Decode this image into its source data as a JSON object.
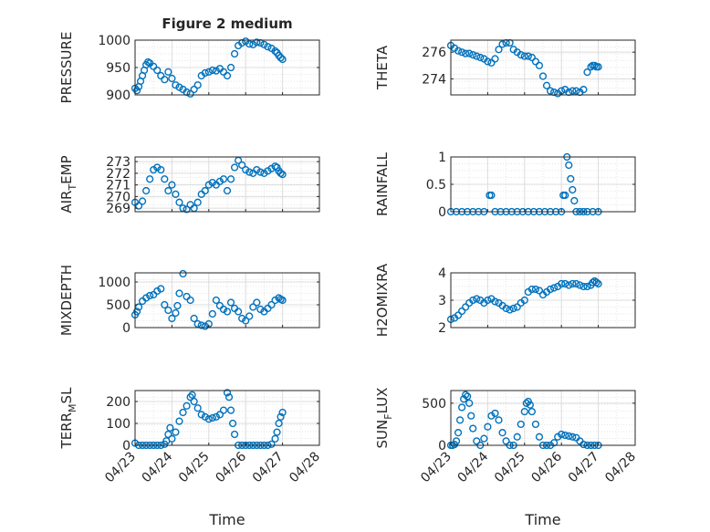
{
  "figure": {
    "title": "Figure 2 medium",
    "marker_color": "#0072BD"
  },
  "chart_data": [
    {
      "id": "pressure",
      "type": "scatter",
      "title": "Figure 2 medium",
      "ylabel": "PRESSURE",
      "xlabel": "",
      "xlim": [
        0,
        5
      ],
      "ylim": [
        900,
        1000
      ],
      "yticks": [
        900,
        950,
        1000
      ],
      "grid": true,
      "series": [
        {
          "x": [
            0,
            0.05,
            0.1,
            0.15,
            0.2,
            0.25,
            0.3,
            0.35,
            0.4,
            0.5,
            0.6,
            0.7,
            0.8,
            0.9,
            1,
            1.1,
            1.2,
            1.3,
            1.4,
            1.5,
            1.6,
            1.7,
            1.8,
            1.9,
            2,
            2.1,
            2.2,
            2.3,
            2.4,
            2.5,
            2.6,
            2.7,
            2.8,
            2.9,
            3,
            3.1,
            3.2,
            3.3,
            3.4,
            3.5,
            3.6,
            3.7,
            3.8,
            3.85,
            3.9,
            3.95,
            4
          ],
          "y": [
            912,
            908,
            915,
            925,
            935,
            945,
            955,
            960,
            958,
            952,
            945,
            935,
            928,
            942,
            930,
            918,
            914,
            910,
            905,
            902,
            910,
            918,
            935,
            940,
            942,
            945,
            944,
            948,
            942,
            935,
            950,
            975,
            990,
            995,
            998,
            993,
            992,
            996,
            995,
            992,
            988,
            985,
            980,
            977,
            972,
            968,
            965
          ]
        }
      ]
    },
    {
      "id": "theta",
      "type": "scatter",
      "ylabel": "THETA",
      "xlabel": "",
      "xlim": [
        0,
        5
      ],
      "ylim": [
        272.8,
        276.9
      ],
      "yticks": [
        274,
        276
      ],
      "grid": true,
      "series": [
        {
          "x": [
            0,
            0.1,
            0.2,
            0.3,
            0.4,
            0.5,
            0.6,
            0.7,
            0.8,
            0.9,
            1,
            1.1,
            1.2,
            1.3,
            1.4,
            1.5,
            1.6,
            1.7,
            1.8,
            1.9,
            2,
            2.1,
            2.2,
            2.3,
            2.4,
            2.5,
            2.6,
            2.7,
            2.8,
            2.9,
            3,
            3.1,
            3.2,
            3.3,
            3.4,
            3.5,
            3.6,
            3.7,
            3.8,
            3.85,
            3.9,
            3.95,
            4
          ],
          "y": [
            276.5,
            276.3,
            276.1,
            276,
            275.9,
            275.9,
            275.8,
            275.7,
            275.6,
            275.5,
            275.3,
            275.2,
            275.5,
            276.2,
            276.6,
            276.7,
            276.7,
            276.2,
            276.0,
            275.8,
            275.7,
            275.7,
            275.6,
            275.3,
            275.0,
            274.2,
            273.5,
            273.1,
            273.0,
            272.9,
            273.1,
            273.2,
            273.0,
            273.1,
            273.1,
            273.0,
            273.2,
            274.5,
            274.9,
            275.0,
            275.0,
            274.9,
            274.9
          ]
        }
      ]
    },
    {
      "id": "air_temp",
      "type": "scatter",
      "ylabel": "AIR_TEMP",
      "xlabel": "",
      "xlim": [
        0,
        5
      ],
      "ylim": [
        268.7,
        273.4
      ],
      "yticks": [
        269,
        270,
        271,
        272,
        273
      ],
      "grid": true,
      "series": [
        {
          "x": [
            0,
            0.1,
            0.2,
            0.3,
            0.4,
            0.5,
            0.6,
            0.7,
            0.8,
            0.9,
            1,
            1.1,
            1.2,
            1.3,
            1.4,
            1.5,
            1.6,
            1.7,
            1.8,
            1.9,
            2,
            2.1,
            2.2,
            2.3,
            2.4,
            2.5,
            2.6,
            2.7,
            2.8,
            2.9,
            3,
            3.1,
            3.2,
            3.3,
            3.4,
            3.5,
            3.6,
            3.7,
            3.8,
            3.85,
            3.9,
            3.95,
            4
          ],
          "y": [
            269.5,
            269.2,
            269.6,
            270.5,
            271.5,
            272.3,
            272.5,
            272.3,
            271.5,
            270.5,
            271.0,
            270.2,
            269.5,
            269.0,
            268.9,
            269.3,
            269.0,
            269.5,
            270.2,
            270.5,
            271.0,
            271.2,
            271.0,
            271.3,
            271.5,
            270.5,
            271.5,
            272.5,
            273.1,
            272.7,
            272.3,
            272.1,
            272.0,
            272.3,
            272.1,
            272.0,
            272.2,
            272.4,
            272.6,
            272.5,
            272.2,
            272.0,
            271.9
          ]
        }
      ]
    },
    {
      "id": "rainfall",
      "type": "scatter",
      "ylabel": "RAINFALL",
      "xlabel": "",
      "xlim": [
        0,
        5
      ],
      "ylim": [
        0,
        1
      ],
      "yticks": [
        0,
        0.5,
        1
      ],
      "yticklabels": [
        "0",
        "0.5",
        "1"
      ],
      "grid": true,
      "series": [
        {
          "x": [
            0,
            0.15,
            0.3,
            0.45,
            0.6,
            0.75,
            0.9,
            1.05,
            1.1,
            1.2,
            1.35,
            1.5,
            1.65,
            1.8,
            1.95,
            2.1,
            2.25,
            2.4,
            2.55,
            2.7,
            2.85,
            3.0,
            3.05,
            3.1,
            3.15,
            3.2,
            3.25,
            3.3,
            3.35,
            3.4,
            3.5,
            3.6,
            3.7,
            3.85,
            4
          ],
          "y": [
            0,
            0,
            0,
            0,
            0,
            0,
            0,
            0.3,
            0.3,
            0,
            0,
            0,
            0,
            0,
            0,
            0,
            0,
            0,
            0,
            0,
            0,
            0,
            0.3,
            0.3,
            1.0,
            0.85,
            0.6,
            0.4,
            0.2,
            0,
            0,
            0,
            0,
            0,
            0
          ]
        }
      ]
    },
    {
      "id": "mixdepth",
      "type": "scatter",
      "ylabel": "MIXDEPTH",
      "xlabel": "",
      "xlim": [
        0,
        5
      ],
      "ylim": [
        0,
        1200
      ],
      "yticks": [
        0,
        500,
        1000
      ],
      "grid": true,
      "series": [
        {
          "x": [
            0,
            0.05,
            0.1,
            0.2,
            0.3,
            0.4,
            0.5,
            0.6,
            0.7,
            0.8,
            0.9,
            1,
            1.1,
            1.15,
            1.2,
            1.3,
            1.4,
            1.5,
            1.6,
            1.7,
            1.8,
            1.9,
            2,
            2.1,
            2.2,
            2.3,
            2.4,
            2.5,
            2.6,
            2.7,
            2.8,
            2.9,
            3,
            3.1,
            3.2,
            3.3,
            3.4,
            3.5,
            3.6,
            3.7,
            3.8,
            3.9,
            3.95,
            4
          ],
          "y": [
            280,
            350,
            450,
            580,
            650,
            700,
            720,
            800,
            850,
            500,
            380,
            200,
            320,
            480,
            750,
            1180,
            680,
            600,
            200,
            80,
            50,
            30,
            80,
            300,
            600,
            480,
            400,
            350,
            550,
            420,
            350,
            200,
            150,
            250,
            450,
            550,
            400,
            350,
            420,
            500,
            600,
            650,
            620,
            600
          ]
        }
      ]
    },
    {
      "id": "h2omixra",
      "type": "scatter",
      "ylabel": "H2OMIXRA",
      "xlabel": "",
      "xlim": [
        0,
        5
      ],
      "ylim": [
        2,
        4
      ],
      "yticks": [
        2,
        3,
        4
      ],
      "grid": true,
      "series": [
        {
          "x": [
            0,
            0.1,
            0.2,
            0.3,
            0.4,
            0.5,
            0.6,
            0.7,
            0.8,
            0.9,
            1,
            1.1,
            1.2,
            1.3,
            1.4,
            1.5,
            1.6,
            1.7,
            1.8,
            1.9,
            2,
            2.1,
            2.2,
            2.3,
            2.4,
            2.5,
            2.6,
            2.7,
            2.8,
            2.9,
            3,
            3.1,
            3.2,
            3.3,
            3.4,
            3.5,
            3.6,
            3.7,
            3.8,
            3.85,
            3.9,
            3.95,
            4
          ],
          "y": [
            2.3,
            2.35,
            2.45,
            2.6,
            2.75,
            2.9,
            3.0,
            3.05,
            3.0,
            2.9,
            3.0,
            3.05,
            2.95,
            2.9,
            2.8,
            2.7,
            2.65,
            2.7,
            2.75,
            2.9,
            3.0,
            3.3,
            3.4,
            3.4,
            3.35,
            3.2,
            3.3,
            3.4,
            3.45,
            3.5,
            3.6,
            3.6,
            3.55,
            3.6,
            3.6,
            3.55,
            3.5,
            3.5,
            3.55,
            3.65,
            3.7,
            3.65,
            3.6
          ]
        }
      ]
    },
    {
      "id": "terr_msl",
      "type": "scatter",
      "ylabel": "TERR_MSL",
      "xlabel": "Time",
      "xlim": [
        0,
        5
      ],
      "ylim": [
        0,
        250
      ],
      "yticks": [
        0,
        100,
        200
      ],
      "grid": true,
      "xticks": [
        0,
        1,
        2,
        3,
        4,
        5
      ],
      "xticklabels": [
        "04/23",
        "04/24",
        "04/25",
        "04/26",
        "04/27",
        "04/28"
      ],
      "series": [
        {
          "x": [
            0,
            0.1,
            0.2,
            0.3,
            0.4,
            0.5,
            0.6,
            0.7,
            0.8,
            0.85,
            0.9,
            0.95,
            1,
            1.1,
            1.2,
            1.3,
            1.4,
            1.5,
            1.55,
            1.6,
            1.7,
            1.8,
            1.9,
            2,
            2.1,
            2.2,
            2.3,
            2.4,
            2.5,
            2.55,
            2.6,
            2.65,
            2.7,
            2.8,
            2.9,
            3,
            3.1,
            3.2,
            3.3,
            3.4,
            3.5,
            3.6,
            3.7,
            3.8,
            3.85,
            3.9,
            3.95,
            4
          ],
          "y": [
            10,
            0,
            0,
            0,
            0,
            0,
            0,
            0,
            5,
            20,
            50,
            80,
            30,
            60,
            110,
            150,
            180,
            220,
            230,
            200,
            170,
            140,
            130,
            120,
            125,
            130,
            140,
            160,
            240,
            220,
            160,
            100,
            50,
            0,
            0,
            0,
            0,
            0,
            0,
            0,
            0,
            0,
            5,
            30,
            60,
            100,
            130,
            150
          ]
        }
      ]
    },
    {
      "id": "sun_flux",
      "type": "scatter",
      "ylabel": "SUN_FLUX",
      "xlabel": "Time",
      "xlim": [
        0,
        5
      ],
      "ylim": [
        0,
        650
      ],
      "yticks": [
        0,
        500
      ],
      "grid": true,
      "xticks": [
        0,
        1,
        2,
        3,
        4,
        5
      ],
      "xticklabels": [
        "04/23",
        "04/24",
        "04/25",
        "04/26",
        "04/27",
        "04/28"
      ],
      "series": [
        {
          "x": [
            0,
            0.05,
            0.1,
            0.15,
            0.2,
            0.25,
            0.3,
            0.35,
            0.4,
            0.45,
            0.5,
            0.55,
            0.6,
            0.7,
            0.8,
            0.9,
            1,
            1.1,
            1.2,
            1.3,
            1.4,
            1.5,
            1.6,
            1.7,
            1.8,
            1.9,
            2,
            2.05,
            2.1,
            2.15,
            2.2,
            2.3,
            2.4,
            2.5,
            2.6,
            2.7,
            2.8,
            2.9,
            3,
            3.1,
            3.2,
            3.3,
            3.4,
            3.5,
            3.6,
            3.7,
            3.8,
            3.9,
            4
          ],
          "y": [
            0,
            0,
            10,
            50,
            150,
            300,
            450,
            550,
            600,
            580,
            500,
            350,
            200,
            50,
            0,
            80,
            220,
            350,
            380,
            300,
            150,
            50,
            0,
            0,
            100,
            250,
            400,
            500,
            520,
            480,
            400,
            250,
            100,
            0,
            0,
            0,
            30,
            100,
            130,
            120,
            110,
            100,
            90,
            50,
            10,
            0,
            0,
            0,
            0
          ]
        }
      ]
    }
  ]
}
